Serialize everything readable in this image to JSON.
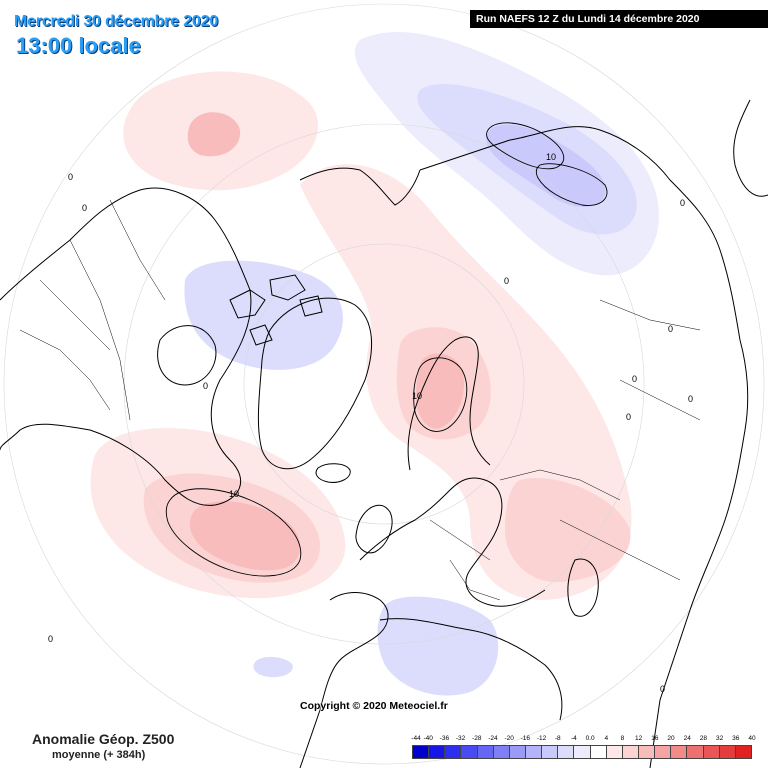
{
  "header": {
    "date": "Mercredi 30 décembre 2020",
    "time": "13:00 locale",
    "run": "Run NAEFS 12 Z du Lundi 14 décembre 2020"
  },
  "footer": {
    "title": "Anomalie Géop. Z500",
    "subtitle": "moyenne (+ 384h)",
    "copyright": "Copyright © 2020 Meteociel.fr"
  },
  "legend": {
    "labels": [
      "-44",
      "-40",
      "-36",
      "-32",
      "-28",
      "-24",
      "-20",
      "-16",
      "-12",
      "-8",
      "-4",
      "0.0",
      "4",
      "8",
      "12",
      "16",
      "20",
      "24",
      "28",
      "32",
      "36",
      "40"
    ],
    "colors": [
      "#0000cd",
      "#1616e6",
      "#2e2ef0",
      "#4a4af2",
      "#6666f4",
      "#8080f5",
      "#9a9af7",
      "#b3b3f9",
      "#c9c9fb",
      "#dcdcfc",
      "#ececfd",
      "#ffffff",
      "#fde7e7",
      "#fbd3d3",
      "#f8bcbc",
      "#f5a3a3",
      "#f28a8a",
      "#ee7070",
      "#ea5656",
      "#e53d3d",
      "#e02222"
    ]
  },
  "map": {
    "contour_labels": [
      "10",
      "10",
      "10",
      "0",
      "0",
      "0",
      "0",
      "0",
      "0",
      "0",
      "0",
      "0",
      "0",
      "0"
    ],
    "anomaly_colors": {
      "pos_light": "#fde7e7",
      "pos_mid": "#fbd3d3",
      "pos_strong": "#f8bcbc",
      "neg_light": "#ececfd",
      "neg_mid": "#dcdcfc",
      "neg_strong": "#c9c9fb"
    }
  }
}
